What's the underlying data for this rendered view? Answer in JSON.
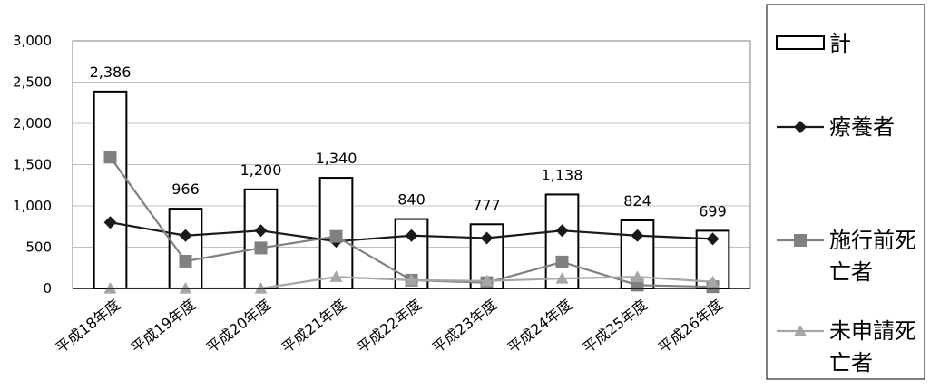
{
  "chart_data": {
    "type": "bar",
    "categories": [
      "平成18年度",
      "平成19年度",
      "平成20年度",
      "平成21年度",
      "平成22年度",
      "平成23年度",
      "平成24年度",
      "平成25年度",
      "平成26年度"
    ],
    "ylim": [
      0,
      3000
    ],
    "yticks": [
      0,
      500,
      1000,
      1500,
      2000,
      2500,
      3000
    ],
    "ytick_labels": [
      "0",
      "500",
      "1,000",
      "1,500",
      "2,000",
      "2,500",
      "3,000"
    ],
    "grid": true,
    "legend_position": "right",
    "series": [
      {
        "name": "計",
        "kind": "bar",
        "values": [
          2386,
          966,
          1200,
          1340,
          840,
          777,
          1138,
          824,
          699
        ],
        "value_labels": [
          "2,386",
          "966",
          "1,200",
          "1,340",
          "840",
          "777",
          "1,138",
          "824",
          "699"
        ],
        "color": "#ffffff",
        "stroke": "#000000"
      },
      {
        "name": "療養者",
        "kind": "line",
        "marker": "diamond",
        "values": [
          800,
          640,
          700,
          570,
          640,
          610,
          700,
          640,
          600
        ],
        "color": "#1a1a1a"
      },
      {
        "name": "施行前死亡者",
        "kind": "line",
        "marker": "square",
        "values": [
          1590,
          330,
          490,
          630,
          100,
          70,
          320,
          40,
          20
        ],
        "color": "#808080"
      },
      {
        "name": "未申請死亡者",
        "kind": "line",
        "marker": "triangle",
        "values": [
          0,
          0,
          0,
          140,
          100,
          90,
          120,
          140,
          80
        ],
        "color": "#a6a6a6"
      }
    ]
  },
  "legend": {
    "items": [
      {
        "lines": [
          "計"
        ]
      },
      {
        "lines": [
          "療養者"
        ]
      },
      {
        "lines": [
          "施行前死",
          "亡者"
        ]
      },
      {
        "lines": [
          "未申請死",
          "亡者"
        ]
      }
    ]
  }
}
